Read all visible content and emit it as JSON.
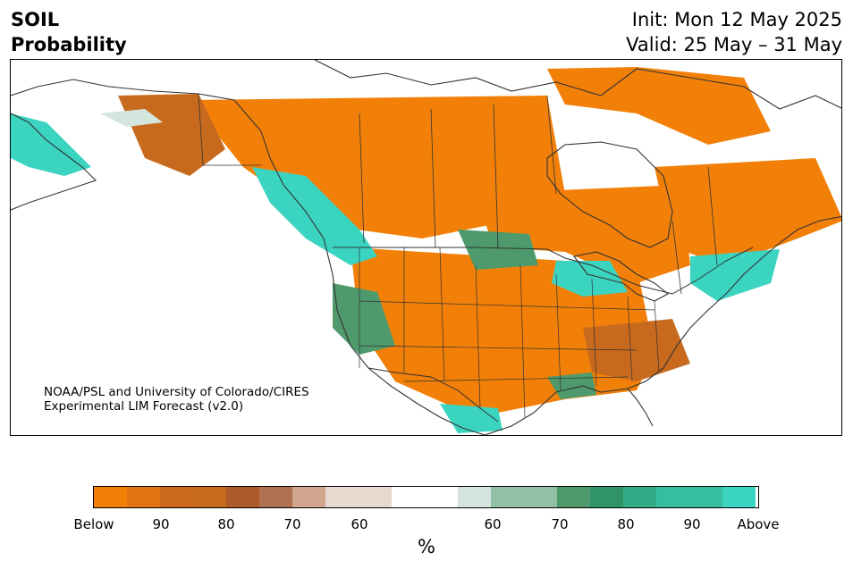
{
  "header": {
    "variable": "SOIL",
    "product": "Probability",
    "init": "Init: Mon 12 May 2025",
    "valid": "Valid: 25 May – 31 May"
  },
  "credit": {
    "line1": "NOAA/PSL and University of Colorado/CIRES",
    "line2": "Experimental LIM Forecast (v2.0)"
  },
  "colorbar": {
    "unit": "%",
    "colors": [
      "#f28008",
      "#e07412",
      "#cb6a1e",
      "#c86a1e",
      "#ad5a2a",
      "#b07152",
      "#d1a58f",
      "#e9d8d0",
      "#ffffff",
      "#d3e5dd",
      "#92c0a7",
      "#4e9a6c",
      "#2f9467",
      "#33ab88",
      "#37bea0",
      "#3bd4c1"
    ],
    "labels": [
      "Below",
      "90",
      "80",
      "70",
      "60",
      "60",
      "70",
      "80",
      "90",
      "Above"
    ]
  },
  "legend_colors": {
    "below_strong": "#f28008",
    "below_mid": "#c86a1e",
    "below_weak": "#e9d8d0",
    "above_weak": "#d3e5dd",
    "above_mid": "#4e9a6c",
    "above_strong": "#3bd4c1"
  }
}
